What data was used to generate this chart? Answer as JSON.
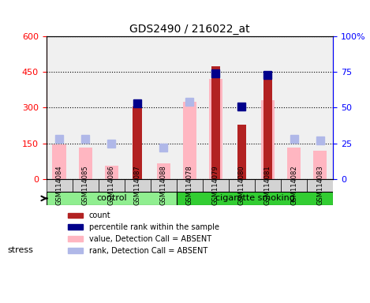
{
  "title": "GDS2490 / 216022_at",
  "samples": [
    "GSM114084",
    "GSM114085",
    "GSM114086",
    "GSM114087",
    "GSM114088",
    "GSM114078",
    "GSM114079",
    "GSM114080",
    "GSM114081",
    "GSM114082",
    "GSM114083"
  ],
  "groups": [
    "control",
    "control",
    "control",
    "control",
    "control",
    "cigarette smoking",
    "cigarette smoking",
    "cigarette smoking",
    "cigarette smoking",
    "cigarette smoking",
    "cigarette smoking"
  ],
  "count_values": [
    null,
    null,
    null,
    305,
    null,
    null,
    475,
    230,
    445,
    null,
    null
  ],
  "percentile_values": [
    null,
    null,
    null,
    53,
    null,
    null,
    74,
    51,
    73,
    null,
    null
  ],
  "absent_value": [
    145,
    132,
    55,
    null,
    65,
    325,
    420,
    null,
    330,
    132,
    120
  ],
  "absent_rank": [
    28,
    28,
    25,
    null,
    22,
    54,
    null,
    null,
    null,
    28,
    27
  ],
  "ylim_left": [
    0,
    600
  ],
  "ylim_right": [
    0,
    100
  ],
  "yticks_left": [
    0,
    150,
    300,
    450,
    600
  ],
  "yticks_right": [
    0,
    25,
    50,
    75,
    100
  ],
  "ytick_labels_left": [
    "0",
    "150",
    "300",
    "450",
    "600"
  ],
  "ytick_labels_right": [
    "0",
    "25",
    "50",
    "75",
    "100%"
  ],
  "bar_color_count": "#b22222",
  "bar_color_absent": "#ffb6c1",
  "dot_color_percentile": "#00008b",
  "dot_color_absent_rank": "#b0b8e8",
  "group_colors": [
    "#90ee90",
    "#32cd32"
  ],
  "group_labels": [
    "control",
    "cigarette smoking"
  ],
  "stress_label": "stress",
  "legend_items": [
    {
      "color": "#b22222",
      "marker": "s",
      "label": "count"
    },
    {
      "color": "#00008b",
      "marker": "s",
      "label": "percentile rank within the sample"
    },
    {
      "color": "#ffb6c1",
      "marker": "s",
      "label": "value, Detection Call = ABSENT"
    },
    {
      "color": "#b0b8e8",
      "marker": "s",
      "label": "rank, Detection Call = ABSENT"
    }
  ]
}
